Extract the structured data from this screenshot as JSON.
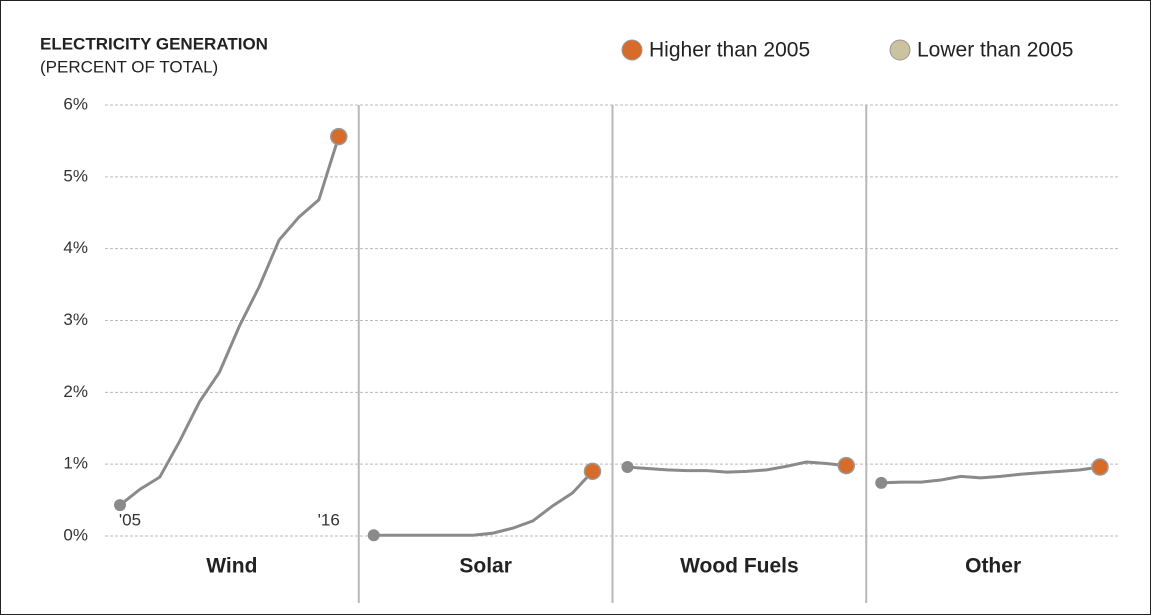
{
  "chart_data": {
    "type": "line",
    "title": "ELECTRICITY  GENERATION",
    "subtitle": "(PERCENT OF TOTAL)",
    "categories": [
      "'05",
      null,
      null,
      null,
      null,
      null,
      null,
      null,
      null,
      null,
      null,
      "'16"
    ],
    "line_color": "#8a8a8a",
    "legend": [
      {
        "label": "Higher than 2005",
        "color": "#d76b2a"
      },
      {
        "label": "Lower than 2005",
        "color": "#cbc39f"
      }
    ],
    "series": [
      {
        "name": "Wind",
        "values": [
          0.43,
          0.65,
          0.82,
          1.32,
          1.87,
          2.28,
          2.92,
          3.47,
          4.12,
          4.44,
          4.68,
          5.56
        ]
      },
      {
        "name": "Solar",
        "values": [
          0.01,
          0.01,
          0.01,
          0.01,
          0.01,
          0.01,
          0.04,
          0.11,
          0.21,
          0.42,
          0.6,
          0.9
        ]
      },
      {
        "name": "Wood Fuels",
        "values": [
          0.96,
          0.94,
          0.92,
          0.91,
          0.91,
          0.89,
          0.9,
          0.92,
          0.97,
          1.03,
          1.01,
          0.98
        ]
      },
      {
        "name": "Other",
        "values": [
          0.74,
          0.75,
          0.75,
          0.78,
          0.83,
          0.81,
          0.83,
          0.86,
          0.88,
          0.9,
          0.92,
          0.96
        ]
      }
    ],
    "ylim": [
      0,
      6
    ],
    "yticks": [
      {
        "value": 0,
        "label": "0%"
      },
      {
        "value": 1,
        "label": "1%"
      },
      {
        "value": 2,
        "label": "2%"
      },
      {
        "value": 3,
        "label": "3%"
      },
      {
        "value": 4,
        "label": "4%"
      },
      {
        "value": 5,
        "label": "5%"
      },
      {
        "value": 6,
        "label": "6%"
      }
    ],
    "grid": true
  }
}
